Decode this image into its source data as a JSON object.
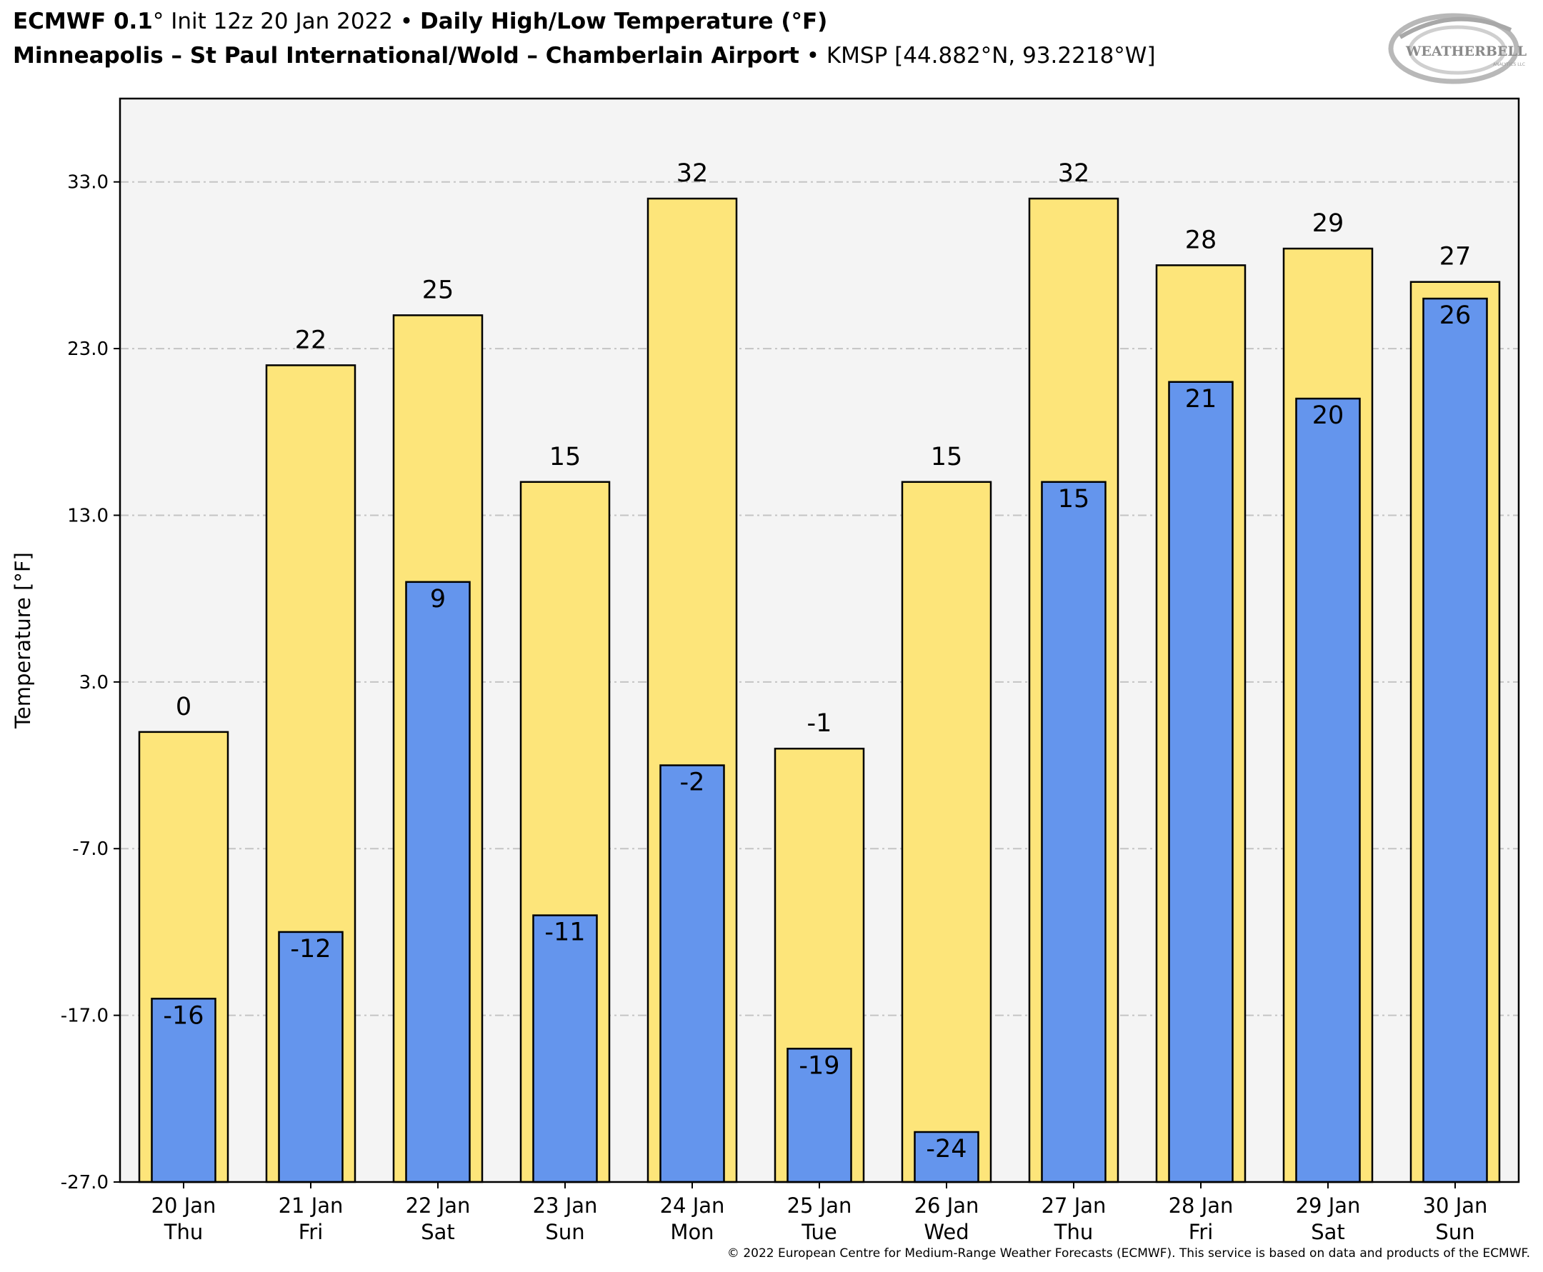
{
  "header": {
    "line1_model": "ECMWF 0.1",
    "line1_deg": "°",
    "line1_init": " Init 12z 20 Jan 2022",
    "line1_sep": " • ",
    "line1_title": "Daily High/Low Temperature (°F)",
    "line2_station": "Minneapolis – St Paul International/Wold – Chamberlain Airport",
    "line2_sep": " • ",
    "line2_id": "KMSP [44.882°N, 93.2218°W]"
  },
  "logo": {
    "text": "WEATHERBELL",
    "sub": "ANALYTICS LLC"
  },
  "copyright": "© 2022 European Centre for Medium-Range Weather Forecasts (ECMWF). This service is based on data and products of the ECMWF.",
  "chart_data": {
    "type": "bar",
    "title": "Daily High/Low Temperature (°F)",
    "ylabel": "Temperature [°F]",
    "xlabel": "",
    "ylim": [
      -27,
      38
    ],
    "yticks": [
      33.0,
      23.0,
      13.0,
      3.0,
      -7.0,
      -17.0,
      -27.0
    ],
    "ytick_labels": [
      "33.0",
      "23.0",
      "13.0",
      "3.0",
      "-7.0",
      "-17.0",
      "-27.0"
    ],
    "grid": true,
    "categories": [
      "20 Jan",
      "21 Jan",
      "22 Jan",
      "23 Jan",
      "24 Jan",
      "25 Jan",
      "26 Jan",
      "27 Jan",
      "28 Jan",
      "29 Jan",
      "30 Jan"
    ],
    "days": [
      "Thu",
      "Fri",
      "Sat",
      "Sun",
      "Mon",
      "Tue",
      "Wed",
      "Thu",
      "Fri",
      "Sat",
      "Sun"
    ],
    "series": [
      {
        "name": "High",
        "color": "#fde57a",
        "values": [
          0,
          22,
          25,
          15,
          32,
          -1,
          15,
          32,
          28,
          29,
          27
        ]
      },
      {
        "name": "Low",
        "color": "#6495ed",
        "values": [
          -16,
          -12,
          9,
          -11,
          -2,
          -19,
          -24,
          15,
          21,
          20,
          26
        ]
      }
    ],
    "plot_background": "#f4f4f4"
  }
}
